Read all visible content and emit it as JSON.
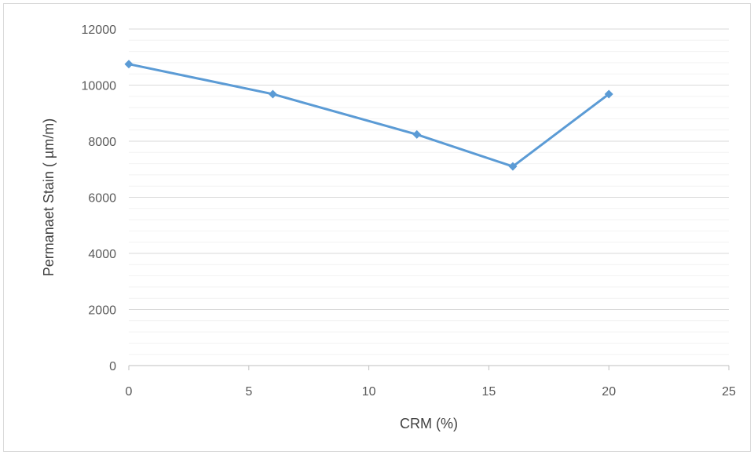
{
  "chart_data": {
    "type": "line",
    "title": "",
    "xlabel": "CRM (%)",
    "ylabel": "Permanaet Stain ( µm/m)",
    "xlim": [
      0,
      25
    ],
    "ylim": [
      0,
      12000
    ],
    "x_ticks": [
      "0",
      "5",
      "10",
      "15",
      "20",
      "25"
    ],
    "y_ticks": [
      "0",
      "2000",
      "4000",
      "6000",
      "8000",
      "10000",
      "12000"
    ],
    "grid": "horizontal major and minor",
    "legend": "none",
    "series": [
      {
        "color": "#5b9bd5",
        "marker": "diamond",
        "points": [
          {
            "x": 0,
            "y": 10750
          },
          {
            "x": 6,
            "y": 9680
          },
          {
            "x": 12,
            "y": 8240
          },
          {
            "x": 16,
            "y": 7100
          },
          {
            "x": 20,
            "y": 9680
          }
        ]
      }
    ]
  }
}
